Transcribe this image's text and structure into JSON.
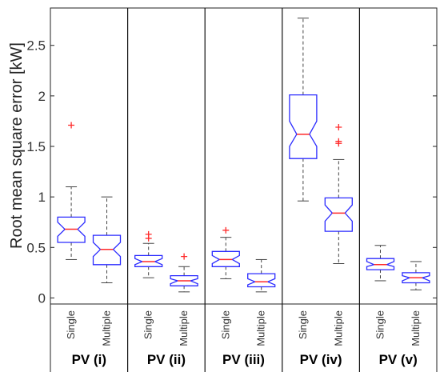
{
  "chart_data": {
    "type": "box",
    "ylabel": "Root mean square error [kW]",
    "ylim": [
      -0.06,
      2.87
    ],
    "yticks": [
      0,
      0.5,
      1,
      1.5,
      2,
      2.5
    ],
    "ytick_labels": [
      "0",
      "0.5",
      "1",
      "1.5",
      "2",
      "2.5"
    ],
    "box_color": "#2b2bff",
    "median_color": "#ff2a2a",
    "outlier_color": "#ff2a2a",
    "whisker_color": "#444444",
    "notched": true,
    "groups": [
      {
        "label": "PV (i)",
        "boxes": [
          {
            "category": "Single",
            "whisker_low": 0.38,
            "q1": 0.55,
            "median": 0.68,
            "q3": 0.8,
            "whisker_high": 1.1,
            "notch_low": 0.61,
            "notch_high": 0.75,
            "outliers": [
              1.71
            ]
          },
          {
            "category": "Multiple",
            "whisker_low": 0.15,
            "q1": 0.33,
            "median": 0.48,
            "q3": 0.62,
            "whisker_high": 1.0,
            "notch_low": 0.41,
            "notch_high": 0.55,
            "outliers": []
          }
        ]
      },
      {
        "label": "PV (ii)",
        "boxes": [
          {
            "category": "Single",
            "whisker_low": 0.2,
            "q1": 0.31,
            "median": 0.36,
            "q3": 0.42,
            "whisker_high": 0.54,
            "notch_low": 0.33,
            "notch_high": 0.39,
            "outliers": [
              0.59,
              0.63
            ]
          },
          {
            "category": "Multiple",
            "whisker_low": 0.06,
            "q1": 0.12,
            "median": 0.17,
            "q3": 0.22,
            "whisker_high": 0.31,
            "notch_low": 0.14,
            "notch_high": 0.19,
            "outliers": [
              0.41
            ]
          }
        ]
      },
      {
        "label": "PV (iii)",
        "boxes": [
          {
            "category": "Single",
            "whisker_low": 0.19,
            "q1": 0.31,
            "median": 0.38,
            "q3": 0.46,
            "whisker_high": 0.6,
            "notch_low": 0.34,
            "notch_high": 0.42,
            "outliers": [
              0.67
            ]
          },
          {
            "category": "Multiple",
            "whisker_low": 0.06,
            "q1": 0.11,
            "median": 0.16,
            "q3": 0.24,
            "whisker_high": 0.38,
            "notch_low": 0.13,
            "notch_high": 0.19,
            "outliers": []
          }
        ]
      },
      {
        "label": "PV (iv)",
        "boxes": [
          {
            "category": "Single",
            "whisker_low": 0.96,
            "q1": 1.38,
            "median": 1.62,
            "q3": 2.01,
            "whisker_high": 2.77,
            "notch_low": 1.5,
            "notch_high": 1.75,
            "outliers": []
          },
          {
            "category": "Multiple",
            "whisker_low": 0.34,
            "q1": 0.66,
            "median": 0.84,
            "q3": 0.99,
            "whisker_high": 1.37,
            "notch_low": 0.76,
            "notch_high": 0.92,
            "outliers": [
              1.53,
              1.55,
              1.69
            ]
          }
        ]
      },
      {
        "label": "PV (v)",
        "boxes": [
          {
            "category": "Single",
            "whisker_low": 0.17,
            "q1": 0.28,
            "median": 0.33,
            "q3": 0.39,
            "whisker_high": 0.52,
            "notch_low": 0.31,
            "notch_high": 0.36,
            "outliers": []
          },
          {
            "category": "Multiple",
            "whisker_low": 0.08,
            "q1": 0.15,
            "median": 0.2,
            "q3": 0.25,
            "whisker_high": 0.36,
            "notch_low": 0.17,
            "notch_high": 0.22,
            "outliers": []
          }
        ]
      }
    ]
  }
}
